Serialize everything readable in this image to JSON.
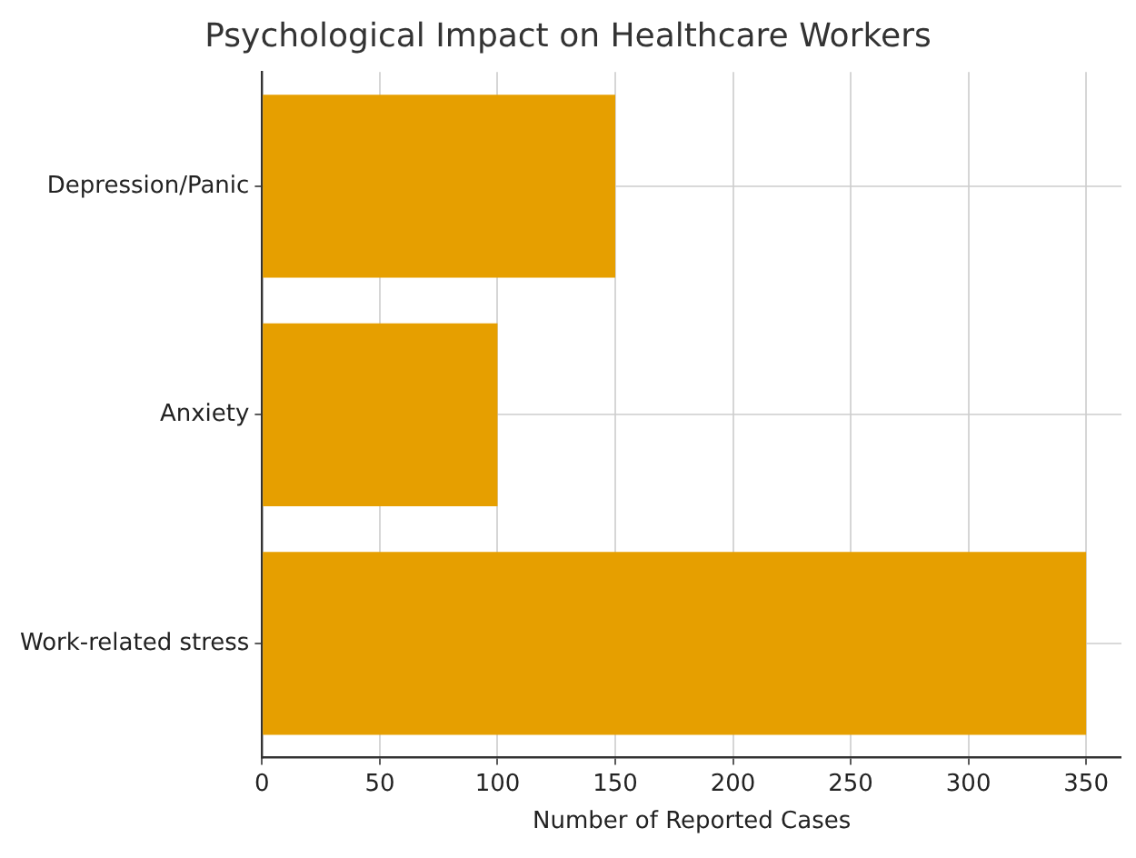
{
  "chart_data": {
    "type": "bar",
    "orientation": "horizontal",
    "title": "Psychological Impact on Healthcare Workers",
    "xlabel": "Number of Reported Cases",
    "categories": [
      "Depression/Panic",
      "Anxiety",
      "Work-related stress"
    ],
    "values": [
      150,
      100,
      350
    ],
    "color": "#e69f00",
    "xlim": [
      0,
      365
    ],
    "xticks": [
      0,
      50,
      100,
      150,
      200,
      250,
      300,
      350
    ],
    "grid": true
  }
}
